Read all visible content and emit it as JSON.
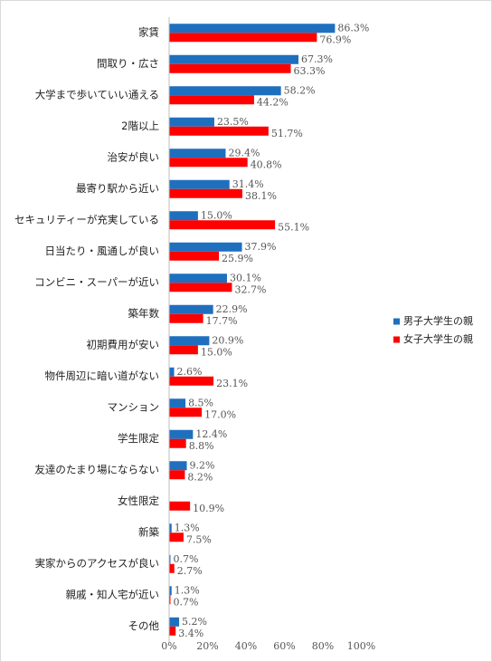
{
  "chart_data": {
    "type": "bar",
    "orientation": "horizontal",
    "categories": [
      "家賃",
      "間取り・広さ",
      "大学まで歩いていい通える",
      "2階以上",
      "治安が良い",
      "最寄り駅から近い",
      "セキュリティーが充実している",
      "日当たり・風通しが良い",
      "コンビニ・スーパーが近い",
      "築年数",
      "初期費用が安い",
      "物件周辺に暗い道がない",
      "マンション",
      "学生限定",
      "友達のたまり場にならない",
      "女性限定",
      "新築",
      "実家からのアクセスが良い",
      "親戚・知人宅が近い",
      "その他"
    ],
    "series": [
      {
        "name": "男子大学生の親",
        "color": "#1f6fbf",
        "values": [
          86.3,
          67.3,
          58.2,
          23.5,
          29.4,
          31.4,
          15.0,
          37.9,
          30.1,
          22.9,
          20.9,
          2.6,
          8.5,
          12.4,
          9.2,
          null,
          1.3,
          0.7,
          1.3,
          5.2
        ],
        "labels": [
          "86.3%",
          "67.3%",
          "58.2%",
          "23.5%",
          "29.4%",
          "31.4%",
          "15.0%",
          "37.9%",
          "30.1%",
          "22.9%",
          "20.9%",
          "2.6%",
          "8.5%",
          "12.4%",
          "9.2%",
          "",
          "1.3%",
          "0.7%",
          "1.3%",
          "5.2%"
        ]
      },
      {
        "name": "女子大学生の親",
        "color": "#ff0000",
        "values": [
          76.9,
          63.3,
          44.2,
          51.7,
          40.8,
          38.1,
          55.1,
          25.9,
          32.7,
          17.7,
          15.0,
          23.1,
          17.0,
          8.8,
          8.2,
          10.9,
          7.5,
          2.7,
          0.7,
          3.4
        ],
        "labels": [
          "76.9%",
          "63.3%",
          "44.2%",
          "51.7%",
          "40.8%",
          "38.1%",
          "55.1%",
          "25.9%",
          "32.7%",
          "17.7%",
          "15.0%",
          "23.1%",
          "17.0%",
          "8.8%",
          "8.2%",
          "10.9%",
          "7.5%",
          "2.7%",
          "0.7%",
          "3.4%"
        ]
      }
    ],
    "x_ticks": [
      "0%",
      "20%",
      "40%",
      "60%",
      "80%",
      "100%"
    ],
    "xlim": [
      0,
      100
    ],
    "grid": false,
    "legend": "right"
  }
}
